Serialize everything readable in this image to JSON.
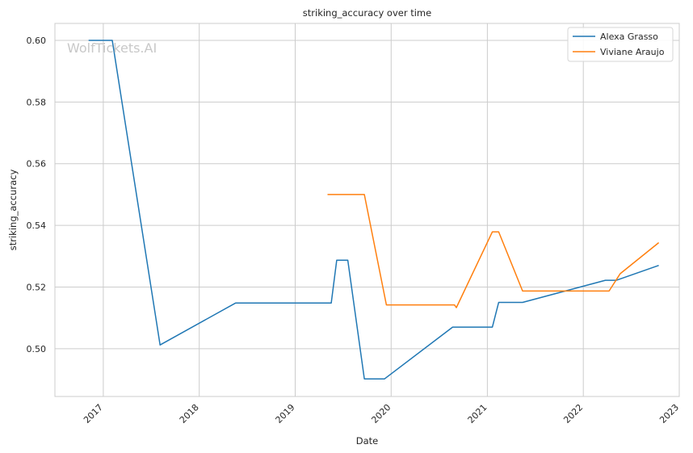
{
  "watermark": "WolfTickets.AI",
  "chart_data": {
    "type": "line",
    "title": "striking_accuracy over time",
    "xlabel": "Date",
    "ylabel": "striking_accuracy",
    "x_ticks": [
      "2017",
      "2018",
      "2019",
      "2020",
      "2021",
      "2022",
      "2023"
    ],
    "y_ticks": [
      "0.50",
      "0.52",
      "0.54",
      "0.56",
      "0.58",
      "0.60"
    ],
    "xlim": [
      "2016-07-01",
      "2023-01-01"
    ],
    "ylim": [
      0.4845,
      0.6055
    ],
    "grid": true,
    "legend_position": "top-right",
    "series": [
      {
        "name": "Alexa Grasso",
        "color": "#1f77b4",
        "points": [
          [
            "2016-11-06",
            0.6
          ],
          [
            "2017-02-04",
            0.6
          ],
          [
            "2017-08-05",
            0.5012
          ],
          [
            "2018-05-19",
            0.5148
          ],
          [
            "2019-05-18",
            0.5148
          ],
          [
            "2019-06-08",
            0.5287
          ],
          [
            "2019-07-20",
            0.5287
          ],
          [
            "2019-09-21",
            0.4902
          ],
          [
            "2019-12-07",
            0.4902
          ],
          [
            "2020-08-22",
            0.507
          ],
          [
            "2021-01-20",
            0.507
          ],
          [
            "2021-02-13",
            0.515
          ],
          [
            "2021-05-15",
            0.515
          ],
          [
            "2022-03-26",
            0.5222
          ],
          [
            "2022-05-07",
            0.5222
          ],
          [
            "2022-10-15",
            0.527
          ]
        ]
      },
      {
        "name": "Viviane Araujo",
        "color": "#ff7f0e",
        "points": [
          [
            "2019-05-04",
            0.55
          ],
          [
            "2019-09-21",
            0.55
          ],
          [
            "2019-12-14",
            0.5142
          ],
          [
            "2020-08-29",
            0.5142
          ],
          [
            "2020-09-05",
            0.5133
          ],
          [
            "2021-01-20",
            0.5379
          ],
          [
            "2021-02-13",
            0.5379
          ],
          [
            "2021-05-15",
            0.5187
          ],
          [
            "2022-04-09",
            0.5187
          ],
          [
            "2022-05-21",
            0.5243
          ],
          [
            "2022-10-15",
            0.5344
          ]
        ]
      }
    ]
  }
}
